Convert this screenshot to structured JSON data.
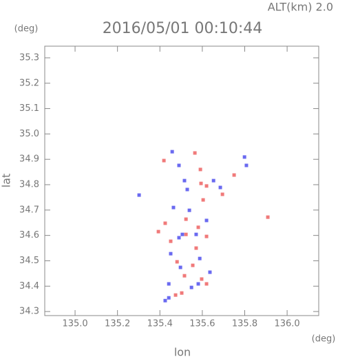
{
  "chart_data": {
    "type": "scatter",
    "title": "2016/05/01 00:10:44",
    "subtitle": "ALT(km) 2.0",
    "y_unit": "(deg)",
    "x_unit": "(deg)",
    "xlabel": "lon",
    "ylabel": "lat",
    "xlim": [
      134.857,
      136.149
    ],
    "ylim": [
      34.284,
      35.346
    ],
    "xticks": [
      {
        "value": 135,
        "label": "135.0"
      },
      135.2,
      135.4,
      135.6,
      135.8,
      {
        "value": 136,
        "label": "136.0"
      }
    ],
    "yticks": [
      34.3,
      34.4,
      34.5,
      34.6,
      34.7,
      34.8,
      34.9,
      {
        "value": 35,
        "label": "35.0"
      },
      35.1,
      35.2,
      35.3
    ],
    "series": [
      {
        "color": "#f07a7a",
        "x": [
          135.419,
          135.565,
          135.591,
          135.62,
          135.594,
          135.695,
          135.75,
          135.909,
          135.425,
          135.581,
          135.523,
          135.62,
          135.481,
          135.555,
          135.516,
          135.597,
          135.62,
          135.474,
          135.503,
          135.571,
          135.451,
          135.604,
          135.523,
          135.393
        ],
        "values": [
          34.895,
          34.925,
          34.86,
          34.795,
          34.805,
          34.762,
          34.838,
          34.672,
          34.648,
          34.632,
          34.604,
          34.596,
          34.496,
          34.482,
          34.441,
          34.428,
          34.409,
          34.365,
          34.373,
          34.55,
          34.577,
          34.74,
          34.664,
          34.615
        ]
      },
      {
        "color": "#6a6af0",
        "x": [
          135.458,
          135.49,
          135.516,
          135.529,
          135.653,
          135.799,
          135.808,
          135.464,
          135.506,
          135.571,
          135.49,
          135.62,
          135.539,
          135.451,
          135.497,
          135.636,
          135.581,
          135.442,
          135.442,
          135.549,
          135.685,
          135.302,
          135.588,
          135.425
        ],
        "values": [
          34.93,
          34.876,
          34.816,
          34.781,
          34.816,
          34.909,
          34.876,
          34.71,
          34.604,
          34.604,
          34.591,
          34.659,
          34.699,
          34.528,
          34.474,
          34.455,
          34.409,
          34.409,
          34.354,
          34.395,
          34.789,
          34.759,
          34.509,
          34.343
        ]
      }
    ]
  }
}
